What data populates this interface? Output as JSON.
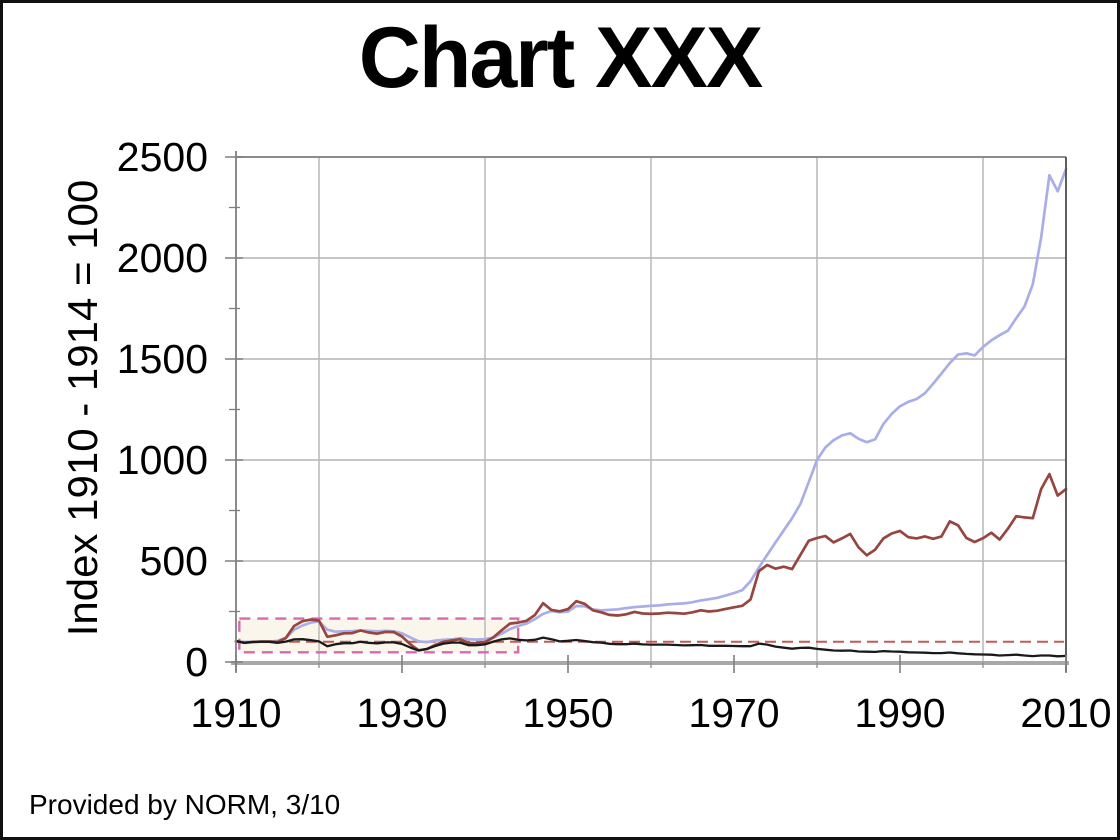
{
  "footer": {
    "text": "Provided by NORM, 3/10"
  },
  "chart_data": {
    "type": "line",
    "title": "Chart XXX",
    "ylabel": "Index 1910 - 1914 = 100",
    "xlabel": "",
    "xlim": [
      1910,
      2010
    ],
    "ylim": [
      0,
      2500
    ],
    "x_ticks": [
      1910,
      1930,
      1950,
      1970,
      1990,
      2010
    ],
    "x_minor_ticks": [
      1920,
      1940,
      1960,
      1980,
      2000
    ],
    "y_ticks": [
      0,
      500,
      1000,
      1500,
      2000,
      2500
    ],
    "y_minor_ticks": [
      250,
      750,
      1250,
      1750,
      2250
    ],
    "grid_x_years": [
      1920,
      1940,
      1960,
      1980,
      2000
    ],
    "grid_y_values": [
      500,
      1000,
      1500,
      2000,
      2500
    ],
    "grid_color": "#b4b4b4",
    "legend": "none",
    "series": [
      {
        "name": "blue-line",
        "color": "#a9aee8",
        "width": 2.7,
        "points": [
          [
            1910,
            100
          ],
          [
            1911,
            99
          ],
          [
            1912,
            100
          ],
          [
            1913,
            100
          ],
          [
            1914,
            101
          ],
          [
            1915,
            105
          ],
          [
            1916,
            118
          ],
          [
            1917,
            160
          ],
          [
            1918,
            180
          ],
          [
            1919,
            195
          ],
          [
            1920,
            201
          ],
          [
            1921,
            160
          ],
          [
            1922,
            150
          ],
          [
            1923,
            152
          ],
          [
            1924,
            153
          ],
          [
            1925,
            156
          ],
          [
            1926,
            154
          ],
          [
            1927,
            152
          ],
          [
            1928,
            154
          ],
          [
            1929,
            152
          ],
          [
            1930,
            142
          ],
          [
            1931,
            122
          ],
          [
            1932,
            102
          ],
          [
            1933,
            98
          ],
          [
            1934,
            106
          ],
          [
            1935,
            110
          ],
          [
            1936,
            112
          ],
          [
            1937,
            118
          ],
          [
            1938,
            113
          ],
          [
            1939,
            111
          ],
          [
            1940,
            113
          ],
          [
            1941,
            121
          ],
          [
            1942,
            140
          ],
          [
            1943,
            163
          ],
          [
            1944,
            178
          ],
          [
            1945,
            190
          ],
          [
            1946,
            212
          ],
          [
            1947,
            238
          ],
          [
            1948,
            252
          ],
          [
            1949,
            246
          ],
          [
            1950,
            250
          ],
          [
            1951,
            277
          ],
          [
            1952,
            276
          ],
          [
            1953,
            260
          ],
          [
            1954,
            256
          ],
          [
            1955,
            258
          ],
          [
            1956,
            261
          ],
          [
            1957,
            267
          ],
          [
            1958,
            272
          ],
          [
            1959,
            275
          ],
          [
            1960,
            278
          ],
          [
            1961,
            280
          ],
          [
            1962,
            285
          ],
          [
            1963,
            288
          ],
          [
            1964,
            290
          ],
          [
            1965,
            296
          ],
          [
            1966,
            305
          ],
          [
            1967,
            311
          ],
          [
            1968,
            318
          ],
          [
            1969,
            329
          ],
          [
            1970,
            341
          ],
          [
            1971,
            356
          ],
          [
            1972,
            400
          ],
          [
            1973,
            468
          ],
          [
            1974,
            530
          ],
          [
            1975,
            592
          ],
          [
            1976,
            652
          ],
          [
            1977,
            712
          ],
          [
            1978,
            782
          ],
          [
            1979,
            890
          ],
          [
            1980,
            1000
          ],
          [
            1981,
            1062
          ],
          [
            1982,
            1098
          ],
          [
            1983,
            1122
          ],
          [
            1984,
            1132
          ],
          [
            1985,
            1105
          ],
          [
            1986,
            1088
          ],
          [
            1987,
            1102
          ],
          [
            1988,
            1178
          ],
          [
            1989,
            1228
          ],
          [
            1990,
            1266
          ],
          [
            1991,
            1288
          ],
          [
            1992,
            1302
          ],
          [
            1993,
            1330
          ],
          [
            1994,
            1378
          ],
          [
            1995,
            1428
          ],
          [
            1996,
            1480
          ],
          [
            1997,
            1522
          ],
          [
            1998,
            1528
          ],
          [
            1999,
            1518
          ],
          [
            2000,
            1560
          ],
          [
            2001,
            1592
          ],
          [
            2002,
            1618
          ],
          [
            2003,
            1640
          ],
          [
            2004,
            1702
          ],
          [
            2005,
            1760
          ],
          [
            2006,
            1870
          ],
          [
            2007,
            2100
          ],
          [
            2008,
            2410
          ],
          [
            2009,
            2330
          ],
          [
            2010,
            2440
          ]
        ]
      },
      {
        "name": "red-line",
        "color": "#96453f",
        "width": 2.7,
        "points": [
          [
            1910,
            103
          ],
          [
            1911,
            95
          ],
          [
            1912,
            99
          ],
          [
            1913,
            101
          ],
          [
            1914,
            101
          ],
          [
            1915,
            99
          ],
          [
            1916,
            119
          ],
          [
            1917,
            178
          ],
          [
            1918,
            202
          ],
          [
            1919,
            210
          ],
          [
            1920,
            205
          ],
          [
            1921,
            125
          ],
          [
            1922,
            132
          ],
          [
            1923,
            142
          ],
          [
            1924,
            143
          ],
          [
            1925,
            156
          ],
          [
            1926,
            146
          ],
          [
            1927,
            140
          ],
          [
            1928,
            149
          ],
          [
            1929,
            148
          ],
          [
            1930,
            126
          ],
          [
            1931,
            88
          ],
          [
            1932,
            58
          ],
          [
            1933,
            64
          ],
          [
            1934,
            84
          ],
          [
            1935,
            100
          ],
          [
            1936,
            107
          ],
          [
            1937,
            113
          ],
          [
            1938,
            94
          ],
          [
            1939,
            92
          ],
          [
            1940,
            98
          ],
          [
            1941,
            122
          ],
          [
            1942,
            157
          ],
          [
            1943,
            190
          ],
          [
            1944,
            195
          ],
          [
            1945,
            204
          ],
          [
            1946,
            232
          ],
          [
            1947,
            291
          ],
          [
            1948,
            258
          ],
          [
            1949,
            251
          ],
          [
            1950,
            262
          ],
          [
            1951,
            301
          ],
          [
            1952,
            288
          ],
          [
            1953,
            256
          ],
          [
            1954,
            246
          ],
          [
            1955,
            233
          ],
          [
            1956,
            230
          ],
          [
            1957,
            236
          ],
          [
            1958,
            248
          ],
          [
            1959,
            240
          ],
          [
            1960,
            238
          ],
          [
            1961,
            240
          ],
          [
            1962,
            244
          ],
          [
            1963,
            242
          ],
          [
            1964,
            239
          ],
          [
            1965,
            246
          ],
          [
            1966,
            256
          ],
          [
            1967,
            250
          ],
          [
            1968,
            254
          ],
          [
            1969,
            263
          ],
          [
            1970,
            271
          ],
          [
            1971,
            278
          ],
          [
            1972,
            310
          ],
          [
            1973,
            450
          ],
          [
            1974,
            480
          ],
          [
            1975,
            462
          ],
          [
            1976,
            472
          ],
          [
            1977,
            460
          ],
          [
            1978,
            530
          ],
          [
            1979,
            600
          ],
          [
            1980,
            614
          ],
          [
            1981,
            624
          ],
          [
            1982,
            592
          ],
          [
            1983,
            612
          ],
          [
            1984,
            634
          ],
          [
            1985,
            568
          ],
          [
            1986,
            528
          ],
          [
            1987,
            556
          ],
          [
            1988,
            612
          ],
          [
            1989,
            636
          ],
          [
            1990,
            649
          ],
          [
            1991,
            618
          ],
          [
            1992,
            612
          ],
          [
            1993,
            622
          ],
          [
            1994,
            610
          ],
          [
            1995,
            622
          ],
          [
            1996,
            696
          ],
          [
            1997,
            676
          ],
          [
            1998,
            614
          ],
          [
            1999,
            594
          ],
          [
            2000,
            613
          ],
          [
            2001,
            640
          ],
          [
            2002,
            606
          ],
          [
            2003,
            660
          ],
          [
            2004,
            722
          ],
          [
            2005,
            716
          ],
          [
            2006,
            712
          ],
          [
            2007,
            856
          ],
          [
            2008,
            930
          ],
          [
            2009,
            824
          ],
          [
            2010,
            856
          ]
        ]
      },
      {
        "name": "black-line",
        "color": "#1a1a1a",
        "width": 2.3,
        "points": [
          [
            1910,
            104
          ],
          [
            1911,
            95
          ],
          [
            1912,
            99
          ],
          [
            1913,
            101
          ],
          [
            1914,
            100
          ],
          [
            1915,
            95
          ],
          [
            1916,
            101
          ],
          [
            1917,
            112
          ],
          [
            1918,
            113
          ],
          [
            1919,
            108
          ],
          [
            1920,
            102
          ],
          [
            1921,
            78
          ],
          [
            1922,
            88
          ],
          [
            1923,
            93
          ],
          [
            1924,
            93
          ],
          [
            1925,
            100
          ],
          [
            1926,
            95
          ],
          [
            1927,
            92
          ],
          [
            1928,
            97
          ],
          [
            1929,
            97
          ],
          [
            1930,
            89
          ],
          [
            1931,
            72
          ],
          [
            1932,
            57
          ],
          [
            1933,
            65
          ],
          [
            1934,
            79
          ],
          [
            1935,
            91
          ],
          [
            1936,
            96
          ],
          [
            1937,
            96
          ],
          [
            1938,
            83
          ],
          [
            1939,
            83
          ],
          [
            1940,
            87
          ],
          [
            1941,
            101
          ],
          [
            1942,
            112
          ],
          [
            1943,
            117
          ],
          [
            1944,
            110
          ],
          [
            1945,
            107
          ],
          [
            1946,
            110
          ],
          [
            1947,
            121
          ],
          [
            1948,
            113
          ],
          [
            1949,
            102
          ],
          [
            1950,
            105
          ],
          [
            1951,
            109
          ],
          [
            1952,
            104
          ],
          [
            1953,
            98
          ],
          [
            1954,
            96
          ],
          [
            1955,
            90
          ],
          [
            1956,
            88
          ],
          [
            1957,
            88
          ],
          [
            1958,
            91
          ],
          [
            1959,
            87
          ],
          [
            1960,
            86
          ],
          [
            1961,
            86
          ],
          [
            1962,
            86
          ],
          [
            1963,
            84
          ],
          [
            1964,
            82
          ],
          [
            1965,
            83
          ],
          [
            1966,
            84
          ],
          [
            1967,
            80
          ],
          [
            1968,
            80
          ],
          [
            1969,
            80
          ],
          [
            1970,
            79
          ],
          [
            1971,
            78
          ],
          [
            1972,
            78
          ],
          [
            1973,
            91
          ],
          [
            1974,
            86
          ],
          [
            1975,
            76
          ],
          [
            1976,
            71
          ],
          [
            1977,
            66
          ],
          [
            1978,
            70
          ],
          [
            1979,
            71
          ],
          [
            1980,
            65
          ],
          [
            1981,
            61
          ],
          [
            1982,
            57
          ],
          [
            1983,
            56
          ],
          [
            1984,
            57
          ],
          [
            1985,
            52
          ],
          [
            1986,
            51
          ],
          [
            1987,
            50
          ],
          [
            1988,
            54
          ],
          [
            1989,
            52
          ],
          [
            1990,
            51
          ],
          [
            1991,
            48
          ],
          [
            1992,
            47
          ],
          [
            1993,
            46
          ],
          [
            1994,
            44
          ],
          [
            1995,
            44
          ],
          [
            1996,
            47
          ],
          [
            1997,
            43
          ],
          [
            1998,
            40
          ],
          [
            1999,
            38
          ],
          [
            2000,
            37
          ],
          [
            2001,
            36
          ],
          [
            2002,
            32
          ],
          [
            2003,
            34
          ],
          [
            2004,
            36
          ],
          [
            2005,
            32
          ],
          [
            2006,
            29
          ],
          [
            2007,
            32
          ],
          [
            2008,
            32
          ],
          [
            2009,
            28
          ],
          [
            2010,
            30
          ]
        ]
      }
    ],
    "annotations": {
      "reference_line": {
        "value": 100,
        "color": "#c05b57",
        "width": 2,
        "dash": "11 6"
      },
      "highlight_box": {
        "x1": 1910.4,
        "x2": 1944,
        "y1": 48,
        "y2": 215,
        "stroke": "#d869b0",
        "fill": "#fbf6ec",
        "width": 2.4,
        "dash": "11 7"
      }
    }
  }
}
